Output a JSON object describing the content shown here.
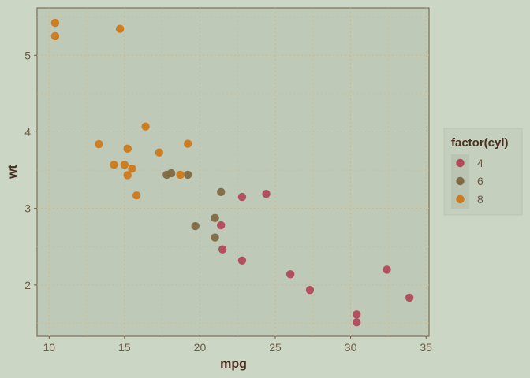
{
  "chart_data": {
    "type": "scatter",
    "xlabel": "mpg",
    "ylabel": "wt",
    "xlim": [
      9.2,
      35.2
    ],
    "ylim": [
      1.33,
      5.62
    ],
    "xticks": [
      10,
      15,
      20,
      25,
      30,
      35
    ],
    "yticks": [
      2,
      3,
      4,
      5
    ],
    "grid": true,
    "legend": {
      "title": "factor(cyl)",
      "placement": "right",
      "entries": [
        "4",
        "6",
        "8"
      ]
    },
    "colors": {
      "4": "#b04a5a",
      "6": "#7f6a42",
      "8": "#cd7a1a"
    },
    "series": [
      {
        "name": "4",
        "points": [
          [
            22.8,
            2.32
          ],
          [
            24.4,
            3.19
          ],
          [
            22.8,
            3.15
          ],
          [
            32.4,
            2.2
          ],
          [
            30.4,
            1.615
          ],
          [
            33.9,
            1.835
          ],
          [
            21.5,
            2.465
          ],
          [
            27.3,
            1.935
          ],
          [
            26.0,
            2.14
          ],
          [
            30.4,
            1.513
          ],
          [
            21.4,
            2.78
          ]
        ]
      },
      {
        "name": "6",
        "points": [
          [
            21.0,
            2.62
          ],
          [
            21.0,
            2.875
          ],
          [
            21.4,
            3.215
          ],
          [
            18.1,
            3.46
          ],
          [
            19.2,
            3.44
          ],
          [
            17.8,
            3.44
          ],
          [
            19.7,
            2.77
          ]
        ]
      },
      {
        "name": "8",
        "points": [
          [
            18.7,
            3.44
          ],
          [
            14.3,
            3.57
          ],
          [
            16.4,
            4.07
          ],
          [
            17.3,
            3.73
          ],
          [
            15.2,
            3.78
          ],
          [
            10.4,
            5.25
          ],
          [
            10.4,
            5.424
          ],
          [
            14.7,
            5.345
          ],
          [
            15.5,
            3.52
          ],
          [
            15.2,
            3.435
          ],
          [
            13.3,
            3.84
          ],
          [
            19.2,
            3.845
          ],
          [
            15.8,
            3.17
          ],
          [
            15.0,
            3.57
          ]
        ]
      }
    ]
  }
}
